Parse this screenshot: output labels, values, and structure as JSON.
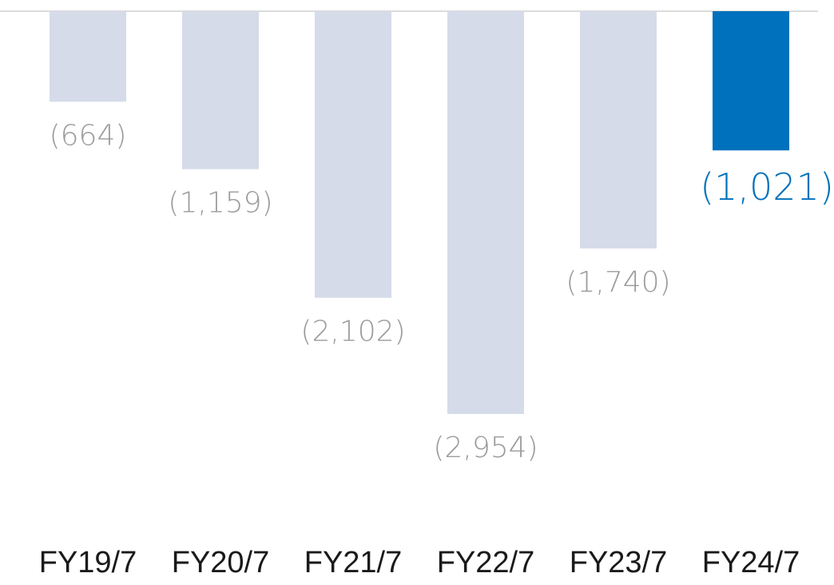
{
  "chart_data": {
    "type": "bar",
    "categories": [
      "FY19/7",
      "FY20/7",
      "FY21/7",
      "FY22/7",
      "FY23/7",
      "FY24/7"
    ],
    "values": [
      -664,
      -1159,
      -2102,
      -2954,
      -1740,
      -1021
    ],
    "value_labels": [
      "(664)",
      "(1,159)",
      "(2,102)",
      "(2,954)",
      "(1,740)",
      "(1,021)"
    ],
    "title": "",
    "xlabel": "",
    "ylabel": "",
    "ylim": [
      -2954,
      0
    ],
    "grid": false,
    "highlight_index": 5
  },
  "colors": {
    "bar": "#d5dbe9",
    "bar_highlight": "#0071bc",
    "label": "#9b9b9b",
    "label_highlight": "#0071bc",
    "category": "#1a1a1a",
    "baseline": "#dcdcdc"
  }
}
